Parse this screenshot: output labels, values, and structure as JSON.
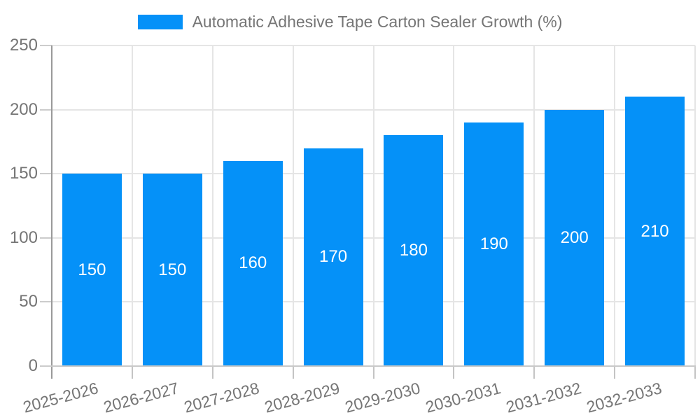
{
  "chart_data": {
    "type": "bar",
    "title": "Automatic Adhesive Tape Carton Sealer Growth (%)",
    "categories": [
      "2025-2026",
      "2026-2027",
      "2027-2028",
      "2028-2029",
      "2029-2030",
      "2030-2031",
      "2031-2032",
      "2032-2033"
    ],
    "values": [
      150,
      150,
      160,
      170,
      180,
      190,
      200,
      210
    ],
    "xlabel": "",
    "ylabel": "",
    "ylim": [
      0,
      250
    ],
    "y_ticks": [
      0,
      50,
      100,
      150,
      200,
      250
    ],
    "grid": "on",
    "legend_position": "top-center",
    "value_labels": "centered-inside-bars-white",
    "colors": {
      "bar": "#0591f8",
      "value_label": "#ffffff",
      "axis_text": "#757575",
      "gridline": "#e5e5e5",
      "y_axis_line": "#999999",
      "x_axis_line": "#c9c9c9"
    }
  }
}
